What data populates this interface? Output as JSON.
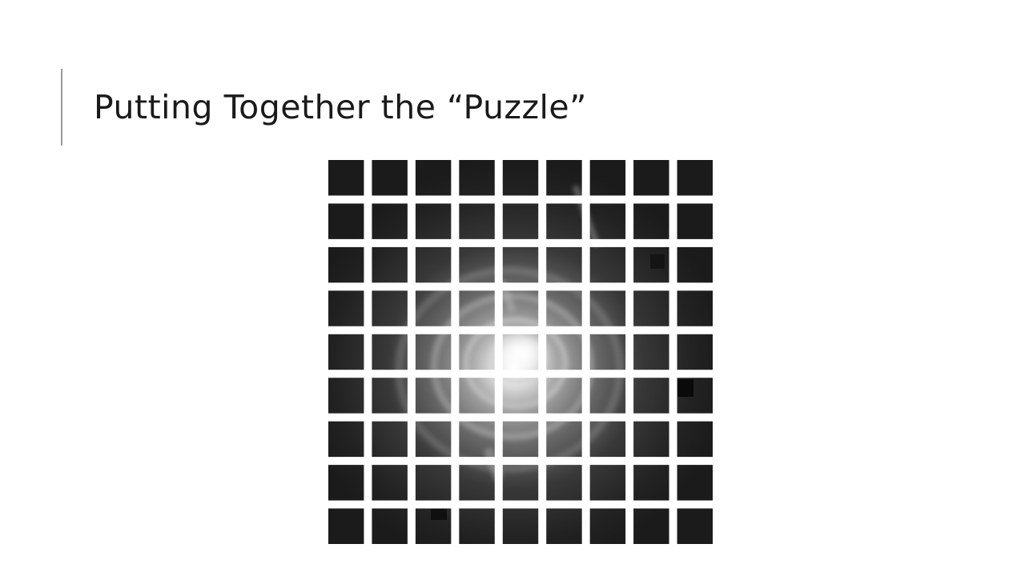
{
  "slide": {
    "title": "Putting Together the “Puzzle”"
  },
  "puzzle_figure": {
    "description_icon": "diffraction-pattern-tiles",
    "tile_rows": 9,
    "tile_cols": 9,
    "colors": {
      "background": "#ffffff",
      "tile_dark": "#1c1c1c",
      "ring_light": "#e8e8e8",
      "title_text": "#1a1a1a",
      "accent_bar": "#9a9a9a"
    }
  }
}
